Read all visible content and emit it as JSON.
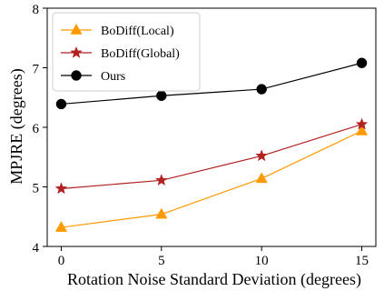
{
  "chart_data": {
    "type": "line",
    "title": "",
    "xlabel": "Rotation Noise Standard Deviation (degrees)",
    "ylabel": "MPJRE (degrees)",
    "x": [
      0,
      5,
      10,
      15
    ],
    "xticks": [
      "0",
      "5",
      "10",
      "15"
    ],
    "yticks": [
      "4",
      "5",
      "6",
      "7",
      "8"
    ],
    "xlim": [
      -0.7,
      15.7
    ],
    "ylim": [
      4,
      8
    ],
    "grid": false,
    "legend_position": "top-left",
    "series": [
      {
        "name": "BoDiff(Local)",
        "color": "#ff9900",
        "marker": "triangle",
        "values": [
          4.32,
          4.54,
          5.14,
          5.94
        ]
      },
      {
        "name": "BoDiff(Global)",
        "color": "#b22222",
        "marker": "star",
        "values": [
          4.97,
          5.11,
          5.52,
          6.05
        ]
      },
      {
        "name": "Ours",
        "color": "#000000",
        "marker": "circle",
        "values": [
          6.39,
          6.53,
          6.64,
          7.08
        ]
      }
    ]
  }
}
